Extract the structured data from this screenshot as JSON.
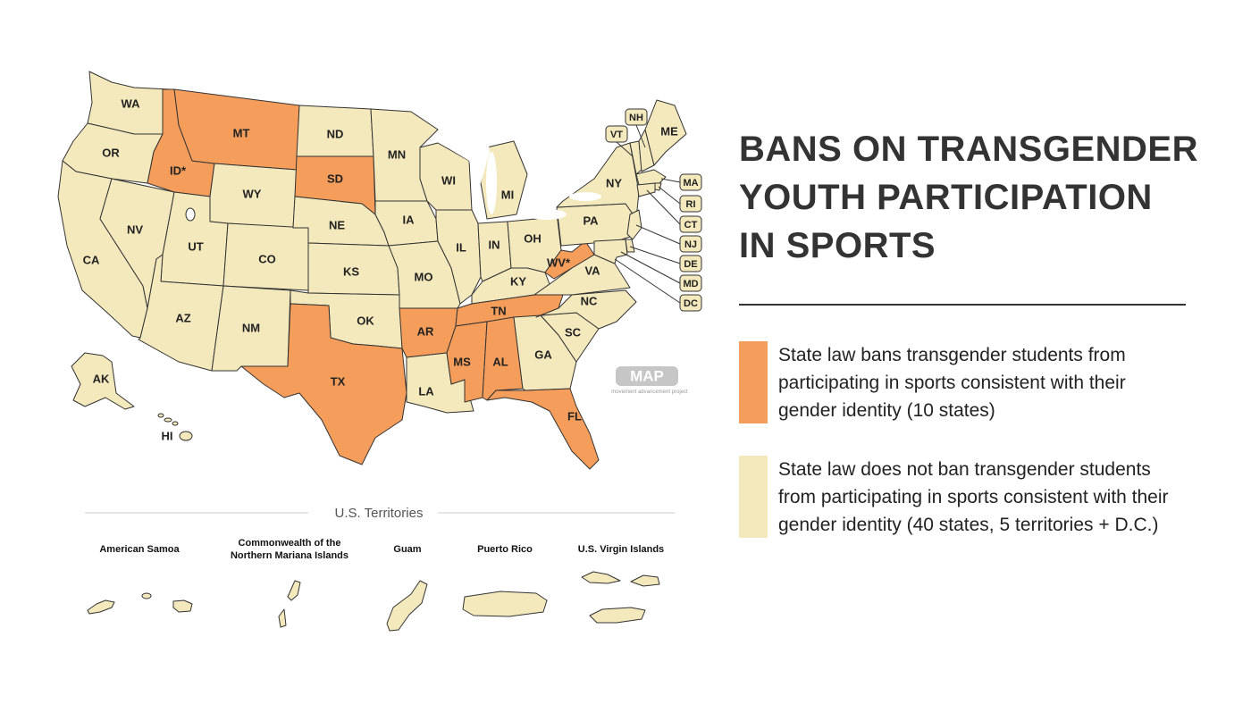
{
  "title": {
    "lines": [
      "BANS ON TRANSGENDER",
      "YOUTH PARTICIPATION",
      "IN SPORTS"
    ]
  },
  "colors": {
    "ban": "#F59D5B",
    "no_ban": "#F3E9BD",
    "border": "#333333",
    "watermark": "#c6c6c6"
  },
  "legend": [
    {
      "key": "ban",
      "color": "#F59D5B",
      "lines": [
        "State law bans transgender students from",
        "participating in sports consistent with their",
        "gender identity (10 states)"
      ]
    },
    {
      "key": "no_ban",
      "color": "#F3E9BD",
      "lines": [
        "State law does not ban transgender students",
        "from participating in sports consistent with their",
        "gender identity (40 states, 5 territories + D.C.)"
      ]
    }
  ],
  "map": {
    "states": [
      {
        "id": "WA",
        "label": "WA",
        "ban": false
      },
      {
        "id": "OR",
        "label": "OR",
        "ban": false
      },
      {
        "id": "CA",
        "label": "CA",
        "ban": false
      },
      {
        "id": "NV",
        "label": "NV",
        "ban": false
      },
      {
        "id": "ID",
        "label": "ID*",
        "ban": true
      },
      {
        "id": "MT",
        "label": "MT",
        "ban": true
      },
      {
        "id": "WY",
        "label": "WY",
        "ban": false
      },
      {
        "id": "UT",
        "label": "UT",
        "ban": false
      },
      {
        "id": "AZ",
        "label": "AZ",
        "ban": false
      },
      {
        "id": "CO",
        "label": "CO",
        "ban": false
      },
      {
        "id": "NM",
        "label": "NM",
        "ban": false
      },
      {
        "id": "ND",
        "label": "ND",
        "ban": false
      },
      {
        "id": "SD",
        "label": "SD",
        "ban": true
      },
      {
        "id": "NE",
        "label": "NE",
        "ban": false
      },
      {
        "id": "KS",
        "label": "KS",
        "ban": false
      },
      {
        "id": "OK",
        "label": "OK",
        "ban": false
      },
      {
        "id": "TX",
        "label": "TX",
        "ban": true
      },
      {
        "id": "MN",
        "label": "MN",
        "ban": false
      },
      {
        "id": "IA",
        "label": "IA",
        "ban": false
      },
      {
        "id": "MO",
        "label": "MO",
        "ban": false
      },
      {
        "id": "AR",
        "label": "AR",
        "ban": true
      },
      {
        "id": "LA",
        "label": "LA",
        "ban": false
      },
      {
        "id": "WI",
        "label": "WI",
        "ban": false
      },
      {
        "id": "IL",
        "label": "IL",
        "ban": false
      },
      {
        "id": "MI",
        "label": "MI",
        "ban": false
      },
      {
        "id": "IN",
        "label": "IN",
        "ban": false
      },
      {
        "id": "OH",
        "label": "OH",
        "ban": false
      },
      {
        "id": "KY",
        "label": "KY",
        "ban": false
      },
      {
        "id": "TN",
        "label": "TN",
        "ban": true
      },
      {
        "id": "MS",
        "label": "MS",
        "ban": true
      },
      {
        "id": "AL",
        "label": "AL",
        "ban": true
      },
      {
        "id": "GA",
        "label": "GA",
        "ban": false
      },
      {
        "id": "FL",
        "label": "FL",
        "ban": true
      },
      {
        "id": "SC",
        "label": "SC",
        "ban": false
      },
      {
        "id": "NC",
        "label": "NC",
        "ban": false
      },
      {
        "id": "VA",
        "label": "VA",
        "ban": false
      },
      {
        "id": "WV",
        "label": "WV*",
        "ban": true
      },
      {
        "id": "PA",
        "label": "PA",
        "ban": false
      },
      {
        "id": "NY",
        "label": "NY",
        "ban": false
      },
      {
        "id": "VT",
        "label": "VT",
        "ban": false
      },
      {
        "id": "NH",
        "label": "NH",
        "ban": false
      },
      {
        "id": "ME",
        "label": "ME",
        "ban": false
      },
      {
        "id": "MA",
        "label": "MA",
        "ban": false
      },
      {
        "id": "RI",
        "label": "RI",
        "ban": false
      },
      {
        "id": "CT",
        "label": "CT",
        "ban": false
      },
      {
        "id": "NJ",
        "label": "NJ",
        "ban": false
      },
      {
        "id": "DE",
        "label": "DE",
        "ban": false
      },
      {
        "id": "MD",
        "label": "MD",
        "ban": false
      },
      {
        "id": "DC",
        "label": "DC",
        "ban": false
      },
      {
        "id": "AK",
        "label": "AK",
        "ban": false
      },
      {
        "id": "HI",
        "label": "HI",
        "ban": false
      }
    ],
    "watermark": {
      "logo": "MAP",
      "tagline": "movement advancement project"
    }
  },
  "territories": {
    "heading": "U.S. Territories",
    "items": [
      {
        "id": "AS",
        "name_lines": [
          "American Samoa"
        ],
        "ban": false
      },
      {
        "id": "MP",
        "name_lines": [
          "Commonwealth of the",
          "Northern Mariana Islands"
        ],
        "ban": false
      },
      {
        "id": "GU",
        "name_lines": [
          "Guam"
        ],
        "ban": false
      },
      {
        "id": "PR",
        "name_lines": [
          "Puerto Rico"
        ],
        "ban": false
      },
      {
        "id": "VI",
        "name_lines": [
          "U.S. Virgin Islands"
        ],
        "ban": false
      }
    ]
  }
}
